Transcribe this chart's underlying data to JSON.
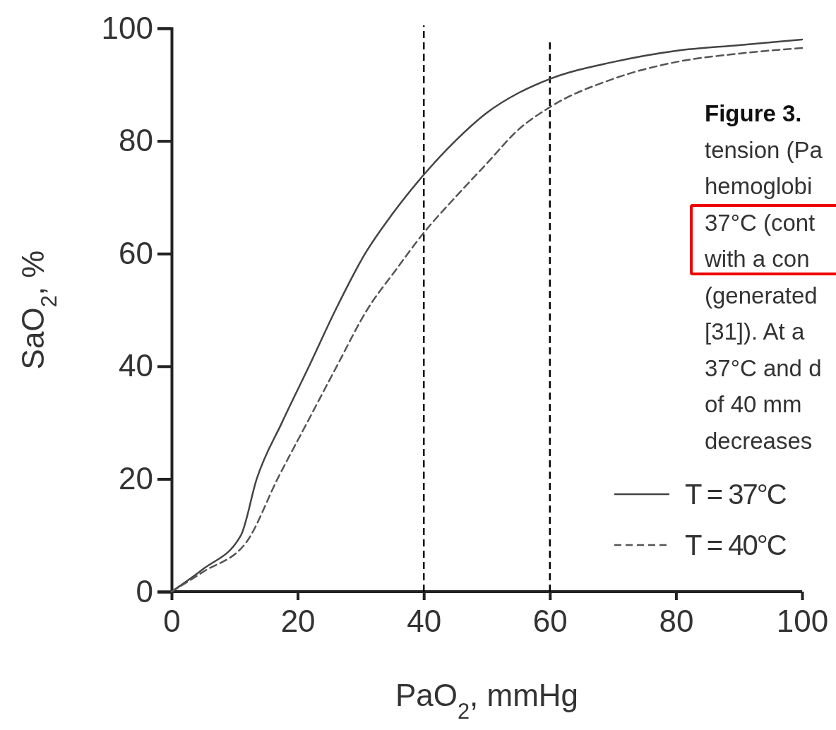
{
  "chart_data": {
    "type": "line",
    "xlabel": "PaO$_{2}$, mmHg",
    "ylabel": "SaO$_{2}$, %",
    "xlim": [
      0,
      100
    ],
    "xticks": [
      0,
      20,
      40,
      60,
      80,
      100
    ],
    "ylim": [
      0,
      100
    ],
    "yticks": [
      0,
      20,
      40,
      60,
      80,
      100
    ],
    "grid": false,
    "legend": "bottom right",
    "marker": "none",
    "series": [
      {
        "name": "T = 37°C",
        "color": "#444444",
        "line_style": "solid",
        "x": [
          0,
          5,
          11,
          13.5,
          17.5,
          21.8,
          26,
          30.7,
          35,
          40,
          45,
          50,
          55,
          60,
          70,
          80,
          90,
          100
        ],
        "values": [
          0,
          4,
          10,
          20,
          30,
          40,
          50,
          60,
          67,
          74,
          80,
          85,
          88.5,
          91,
          94,
          96,
          97,
          98
        ]
      },
      {
        "name": "T = 40°C",
        "color": "#555555",
        "line_style": "dashed",
        "x": [
          0,
          5,
          12,
          16.8,
          21.5,
          26.2,
          31,
          35.5,
          40,
          45,
          50,
          55,
          60,
          70,
          80,
          90,
          100
        ],
        "values": [
          0,
          3.5,
          9,
          20,
          30,
          40,
          50,
          57,
          63.7,
          70,
          76,
          82,
          86,
          91,
          94,
          95.5,
          96.5
        ]
      }
    ],
    "ref_lines": [
      {
        "axis": "x",
        "value": 40,
        "color": "#000000",
        "line_style": "dashed"
      },
      {
        "axis": "x",
        "value": 60,
        "color": "#000000",
        "line_style": "dashed"
      }
    ],
    "annotations": [
      "Figure 3.",
      "tension (Pa",
      "hemoglobi",
      "37°C (cont",
      "with a con",
      "(generated",
      "[31]). At a",
      "37°C and d",
      "of 40 mm",
      "decreases"
    ]
  }
}
